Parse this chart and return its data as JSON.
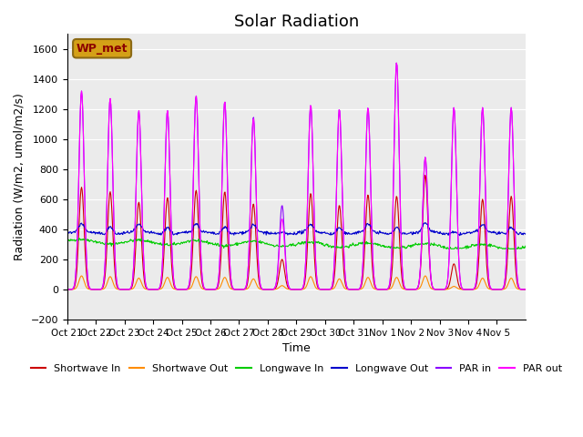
{
  "title": "Solar Radiation",
  "ylabel": "Radiation (W/m2, umol/m2/s)",
  "xlabel": "Time",
  "ylim": [
    -200,
    1700
  ],
  "yticks": [
    -200,
    0,
    200,
    400,
    600,
    800,
    1000,
    1200,
    1400,
    1600
  ],
  "x_tick_labels": [
    "Oct 21",
    "Oct 22",
    "Oct 23",
    "Oct 24",
    "Oct 25",
    "Oct 26",
    "Oct 27",
    "Oct 28",
    "Oct 29",
    "Oct 30",
    "Oct 31",
    "Nov 1",
    "Nov 2",
    "Nov 3",
    "Nov 4",
    "Nov 5"
  ],
  "annotation_box": "WP_met",
  "annotation_box_color": "#d4a017",
  "annotation_text_color": "#8b0000",
  "colors": {
    "shortwave_in": "#cc0000",
    "shortwave_out": "#ff8c00",
    "longwave_in": "#00cc00",
    "longwave_out": "#0000cc",
    "par_in": "#8b00ff",
    "par_out": "#ff00ff"
  },
  "legend_labels": [
    "Shortwave In",
    "Shortwave Out",
    "Longwave In",
    "Longwave Out",
    "PAR in",
    "PAR out"
  ],
  "plot_bg_color": "#ebebeb",
  "title_fontsize": 13,
  "sw_in_peaks": [
    680,
    650,
    580,
    610,
    660,
    650,
    570,
    200,
    640,
    560,
    630,
    620,
    760,
    170,
    600,
    620
  ],
  "sw_out_peaks": [
    90,
    85,
    75,
    80,
    85,
    80,
    70,
    25,
    85,
    70,
    80,
    80,
    90,
    20,
    75,
    75
  ],
  "par_in_peaks": [
    1320,
    1270,
    1190,
    1190,
    1290,
    1250,
    1150,
    560,
    1230,
    1200,
    1210,
    1510,
    880,
    1210,
    1210,
    1210
  ],
  "par_out_peaks": [
    1320,
    1270,
    1190,
    1190,
    1290,
    1250,
    1140,
    470,
    1230,
    1200,
    1210,
    1510,
    880,
    1210,
    1210,
    1210
  ]
}
